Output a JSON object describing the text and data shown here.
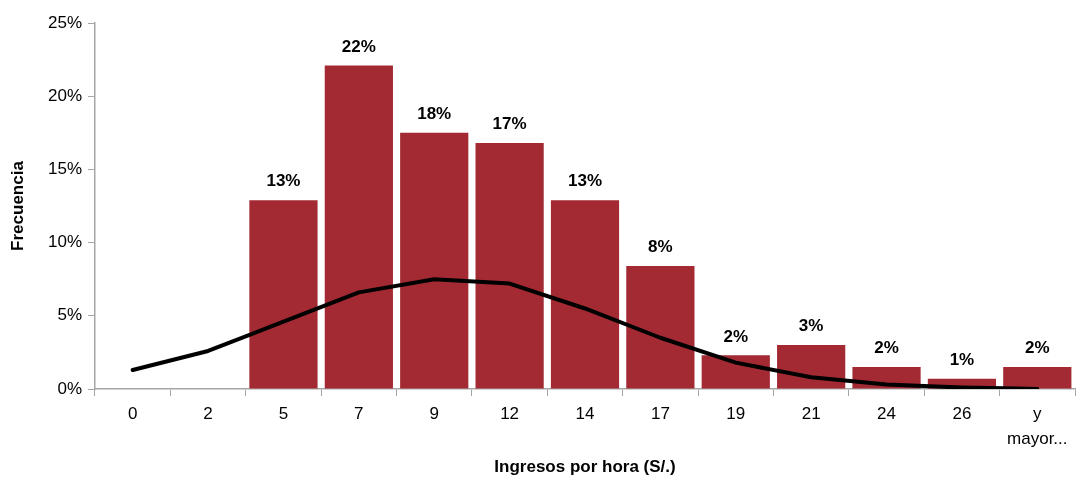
{
  "chart_data": {
    "type": "bar",
    "categories": [
      "0",
      "2",
      "5",
      "7",
      "9",
      "12",
      "14",
      "17",
      "19",
      "21",
      "24",
      "26",
      "y mayor..."
    ],
    "series": [
      {
        "color": "#a32a33",
        "values": [
          null,
          null,
          12.9,
          22.1,
          17.5,
          16.8,
          12.9,
          8.4,
          2.3,
          3.0,
          1.5,
          0.7,
          1.5
        ],
        "value_labels": [
          null,
          null,
          "13%",
          "22%",
          "18%",
          "17%",
          "13%",
          "8%",
          "2%",
          "3%",
          "2%",
          "1%",
          "2%"
        ]
      },
      {
        "type": "line",
        "color": "#000000",
        "values": [
          1.3,
          2.6,
          4.6,
          6.6,
          7.5,
          7.2,
          5.5,
          3.5,
          1.8,
          0.8,
          0.3,
          0.1,
          0
        ]
      }
    ],
    "xlabel": "Ingresos por hora (S/.)",
    "ylabel": "Frecuencia",
    "ylim": [
      0,
      25
    ],
    "yticks": [
      {
        "value": 0,
        "label": "0%"
      },
      {
        "value": 5,
        "label": "5%"
      },
      {
        "value": 10,
        "label": "10%"
      },
      {
        "value": 15,
        "label": "15%"
      },
      {
        "value": 20,
        "label": "20%"
      },
      {
        "value": 25,
        "label": "25%"
      }
    ],
    "marker": "none",
    "legend": false
  }
}
